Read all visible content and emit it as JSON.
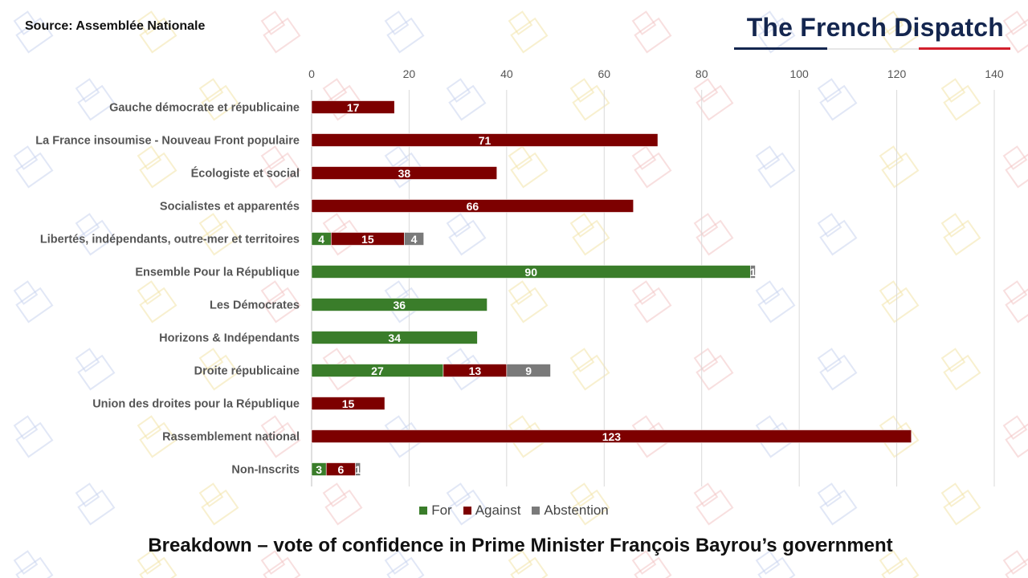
{
  "source_label": "Source: Assemblée Nationale",
  "brand": {
    "name": "The French Dispatch"
  },
  "caption": "Breakdown – vote of confidence in Prime Minister François Bayrou’s government",
  "colors": {
    "for": "#3a7d2a",
    "against": "#7d0000",
    "abstention": "#7a7a7a",
    "grid": "#d9d9d9",
    "brand_navy": "#14264f",
    "brand_red": "#d21f2c"
  },
  "chart_data": {
    "type": "bar",
    "orientation": "horizontal",
    "stacked": true,
    "title": "Breakdown – vote of confidence in Prime Minister François Bayrou’s government",
    "xlabel": "",
    "ylabel": "",
    "xlim": [
      0,
      140
    ],
    "x_ticks": [
      0,
      20,
      40,
      60,
      80,
      100,
      120,
      140
    ],
    "grid": true,
    "legend_position": "bottom",
    "categories": [
      "Gauche démocrate et républicaine",
      "La France insoumise - Nouveau Front populaire",
      "Écologiste et social",
      "Socialistes et apparentés",
      "Libertés, indépendants, outre-mer et territoires",
      "Ensemble Pour la République",
      "Les Démocrates",
      "Horizons & Indépendants",
      "Droite républicaine",
      "Union des droites pour la République",
      "Rassemblement national",
      "Non-Inscrits"
    ],
    "series": [
      {
        "name": "For",
        "values": [
          0,
          0,
          0,
          0,
          4,
          90,
          36,
          34,
          27,
          0,
          0,
          3
        ]
      },
      {
        "name": "Against",
        "values": [
          17,
          71,
          38,
          66,
          15,
          0,
          0,
          0,
          13,
          15,
          123,
          6
        ]
      },
      {
        "name": "Abstention",
        "values": [
          0,
          0,
          0,
          0,
          4,
          1,
          0,
          0,
          9,
          0,
          0,
          1
        ]
      }
    ]
  }
}
